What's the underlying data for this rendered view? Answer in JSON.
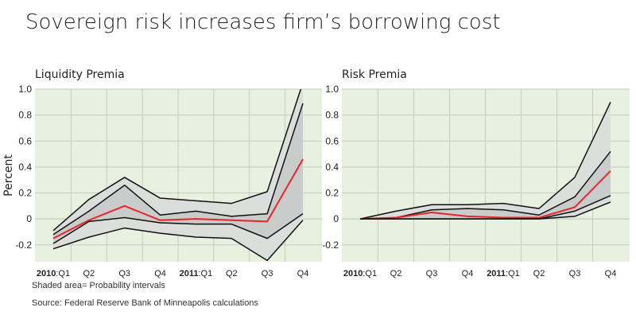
{
  "title": "Sovereign risk increases firm’s borrowing cost",
  "footnote": "Shaded area= Probability intervals",
  "source": "Source: Federal Reserve Bank of Minneapolis calculations",
  "colors": {
    "background": "#e8f0e0",
    "grid": "#c4cbc0",
    "outer_band": "#dcdedb",
    "inner_band": "#c9ccca",
    "median": "#e8252a",
    "bands_line": "#111111"
  },
  "chart_data": [
    {
      "type": "line",
      "title": "Liquidity Premia",
      "ylabel": "Percent",
      "xlabel": "",
      "categories": [
        "2010:Q1",
        "Q2",
        "Q3",
        "Q4",
        "2011:Q1",
        "Q2",
        "Q3",
        "Q4"
      ],
      "ylim": [
        -0.33,
        1.0
      ],
      "yticks": [
        1.0,
        0.8,
        0.6,
        0.4,
        0.2,
        0,
        -0.2
      ],
      "ytick_labels": [
        "1.0",
        "0.8",
        "0.6",
        "0.4",
        "0.2",
        "0",
        "-0.2"
      ],
      "grid": true,
      "shaded": "probability intervals",
      "series": [
        {
          "role": "outer-upper",
          "values": [
            -0.09,
            0.15,
            0.32,
            0.16,
            0.14,
            0.12,
            0.21,
            1.05
          ]
        },
        {
          "role": "inner-upper",
          "values": [
            -0.12,
            0.06,
            0.26,
            0.03,
            0.06,
            0.02,
            0.04,
            0.89
          ]
        },
        {
          "role": "median",
          "values": [
            -0.15,
            -0.01,
            0.1,
            -0.01,
            0.0,
            -0.01,
            -0.02,
            0.46
          ]
        },
        {
          "role": "inner-lower",
          "values": [
            -0.19,
            -0.02,
            0.01,
            -0.03,
            -0.04,
            -0.04,
            -0.15,
            0.04
          ]
        },
        {
          "role": "outer-lower",
          "values": [
            -0.23,
            -0.14,
            -0.07,
            -0.11,
            -0.14,
            -0.15,
            -0.32,
            -0.01
          ]
        }
      ]
    },
    {
      "type": "line",
      "title": "Risk Premia",
      "ylabel": "",
      "xlabel": "",
      "categories": [
        "2010:Q1",
        "Q2",
        "Q3",
        "Q4",
        "2011:Q1",
        "Q2",
        "Q3",
        "Q4"
      ],
      "ylim": [
        -0.33,
        1.0
      ],
      "yticks": [
        1.0,
        0.8,
        0.6,
        0.4,
        0.2,
        0,
        -0.2
      ],
      "ytick_labels": [
        "1.0",
        "0.8",
        "0.6",
        "0.4",
        "0.2",
        "0",
        "-0.2"
      ],
      "grid": true,
      "shaded": "probability intervals",
      "series": [
        {
          "role": "outer-upper",
          "values": [
            0,
            0.06,
            0.11,
            0.11,
            0.12,
            0.08,
            0.32,
            0.9
          ]
        },
        {
          "role": "inner-upper",
          "values": [
            0,
            0.01,
            0.07,
            0.08,
            0.07,
            0.03,
            0.17,
            0.52
          ]
        },
        {
          "role": "median",
          "values": [
            0,
            0.01,
            0.05,
            0.02,
            0.01,
            0.01,
            0.09,
            0.37
          ]
        },
        {
          "role": "inner-lower",
          "values": [
            0,
            0,
            0,
            0,
            0,
            0,
            0.06,
            0.18
          ]
        },
        {
          "role": "outer-lower",
          "values": [
            0,
            0,
            0,
            0,
            0,
            0,
            0.02,
            0.13
          ]
        }
      ]
    }
  ]
}
